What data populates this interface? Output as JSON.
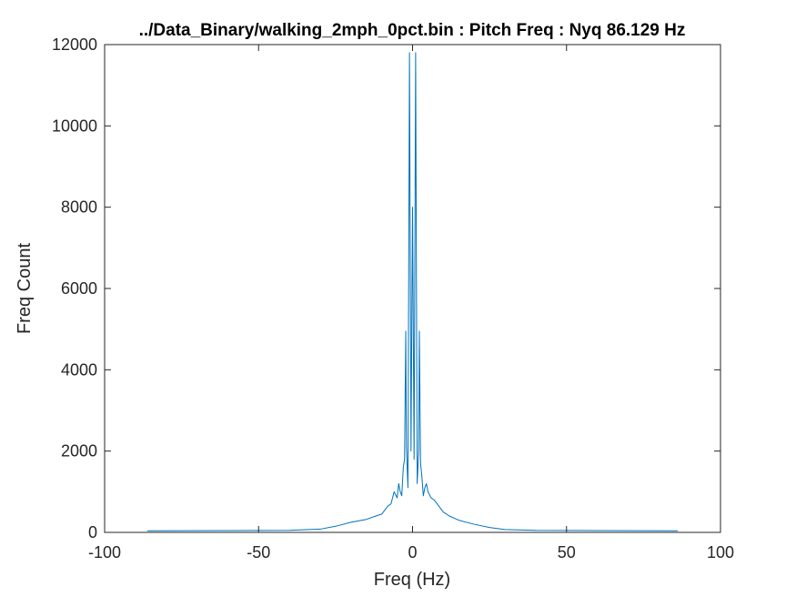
{
  "chart_data": {
    "type": "line",
    "title": "../Data_Binary/walking_2mph_0pct.bin : Pitch Freq : Nyq 86.129 Hz",
    "xlabel": "Freq (Hz)",
    "ylabel": "Freq Count",
    "xlim": [
      -100,
      100
    ],
    "ylim": [
      0,
      12000
    ],
    "xticks": [
      -100,
      -50,
      0,
      50,
      100
    ],
    "yticks": [
      0,
      2000,
      4000,
      6000,
      8000,
      10000,
      12000
    ],
    "grid": false,
    "line_color": "#0072BD",
    "series": [
      {
        "x": [
          -86.129,
          -60,
          -40,
          -30,
          -25,
          -20,
          -15,
          -12,
          -10,
          -8,
          -7,
          -6,
          -5,
          -4.5,
          -4,
          -3.5,
          -3,
          -2.6,
          -2.2,
          -2,
          -1.5,
          -1,
          -0.5,
          0,
          0.5,
          1,
          1.5,
          2,
          2.2,
          2.6,
          3,
          3.5,
          4,
          4.5,
          5,
          6,
          7,
          8,
          10,
          12,
          15,
          20,
          25,
          30,
          40,
          60,
          86.129
        ],
        "values": [
          40,
          45,
          50,
          80,
          150,
          250,
          320,
          400,
          450,
          650,
          700,
          1000,
          850,
          1200,
          1000,
          900,
          1600,
          1800,
          4950,
          2100,
          1100,
          11800,
          2000,
          8000,
          1800,
          11800,
          1200,
          2000,
          4950,
          1700,
          1400,
          900,
          1100,
          1200,
          1000,
          850,
          800,
          700,
          500,
          400,
          300,
          200,
          120,
          70,
          50,
          45,
          40
        ]
      }
    ]
  }
}
